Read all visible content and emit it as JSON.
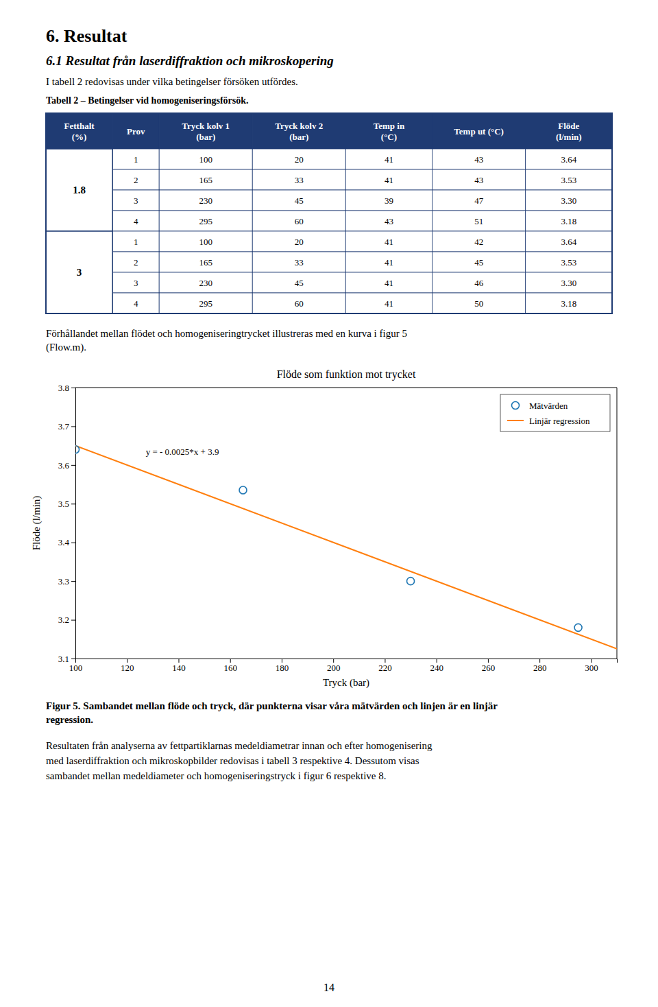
{
  "page": {
    "title_h1": "6. Resultat",
    "title_h2": "6.1 Resultat från laserdiffraktion och mikroskopering",
    "intro_text": "I tabell 2 redovisas under vilka betingelser försöken utfördes.",
    "table_caption": "Tabell 2 – Betingelser vid homogeniseringsförsök.",
    "table_header": [
      "Fetthalt\n(%)",
      "Prov",
      "Tryck kolv 1\n(bar)",
      "Tryck kolv 2\n(bar)",
      "Temp in\n(°C)",
      "Temp ut (°C)",
      "Flöde\n(l/min)"
    ],
    "table_groups": [
      {
        "label": "1.8",
        "rows": [
          [
            "1",
            "100",
            "20",
            "41",
            "43",
            "3.64"
          ],
          [
            "2",
            "165",
            "33",
            "41",
            "43",
            "3.53"
          ],
          [
            "3",
            "230",
            "45",
            "39",
            "47",
            "3.30"
          ],
          [
            "4",
            "295",
            "60",
            "43",
            "51",
            "3.18"
          ]
        ]
      },
      {
        "label": "3",
        "rows": [
          [
            "1",
            "100",
            "20",
            "41",
            "42",
            "3.64"
          ],
          [
            "2",
            "165",
            "33",
            "41",
            "45",
            "3.53"
          ],
          [
            "3",
            "230",
            "45",
            "41",
            "46",
            "3.30"
          ],
          [
            "4",
            "295",
            "60",
            "41",
            "50",
            "3.18"
          ]
        ]
      }
    ],
    "between_text": "Förhållandet mellan flödet och homogeniseringtrycket illustreras med en kurva i figur 5\n(Flow.m).",
    "fig_caption": "Figur 5. Sambandet mellan flöde och tryck, där punkterna visar våra mätvärden och linjen är en linjär\nregression.",
    "body_text": "Resultaten från analyserna av fettpartiklarnas medeldiametrar innan och efter homogenisering\nmed laserdiffraktion och mikroskopbilder redovisas i tabell 3 respektive 4. Dessutom visas\nsambandet mellan medeldiameter och homogeniseringstryck i figur 6 respektive 8.",
    "footer_text": "14"
  },
  "chart_data": {
    "type": "scatter",
    "title": "Flöde som funktion mot trycket",
    "x_label": "Tryck (bar)",
    "y_label": "Flöde (l/min)",
    "xlim": [
      100,
      310
    ],
    "ylim": [
      3.1,
      3.8
    ],
    "xticks": [
      100,
      120,
      140,
      160,
      180,
      200,
      220,
      240,
      260,
      280,
      300
    ],
    "yticks": [
      3.1,
      3.2,
      3.3,
      3.4,
      3.5,
      3.6,
      3.7,
      3.8
    ],
    "grid": false,
    "legend": "upper right",
    "annotations": [
      {
        "text": "y = - 0.0025*x + 3.9"
      }
    ],
    "series": [
      {
        "name": "Mätvärden",
        "type": "scatter",
        "marker": "circle",
        "x": [
          100,
          165,
          230,
          295
        ],
        "values": [
          3.64,
          3.535,
          3.3,
          3.18
        ]
      },
      {
        "name": "Linjär regression",
        "type": "line",
        "line_style": "solid",
        "x": [
          100,
          310
        ],
        "values": [
          3.65,
          3.125
        ]
      }
    ]
  }
}
